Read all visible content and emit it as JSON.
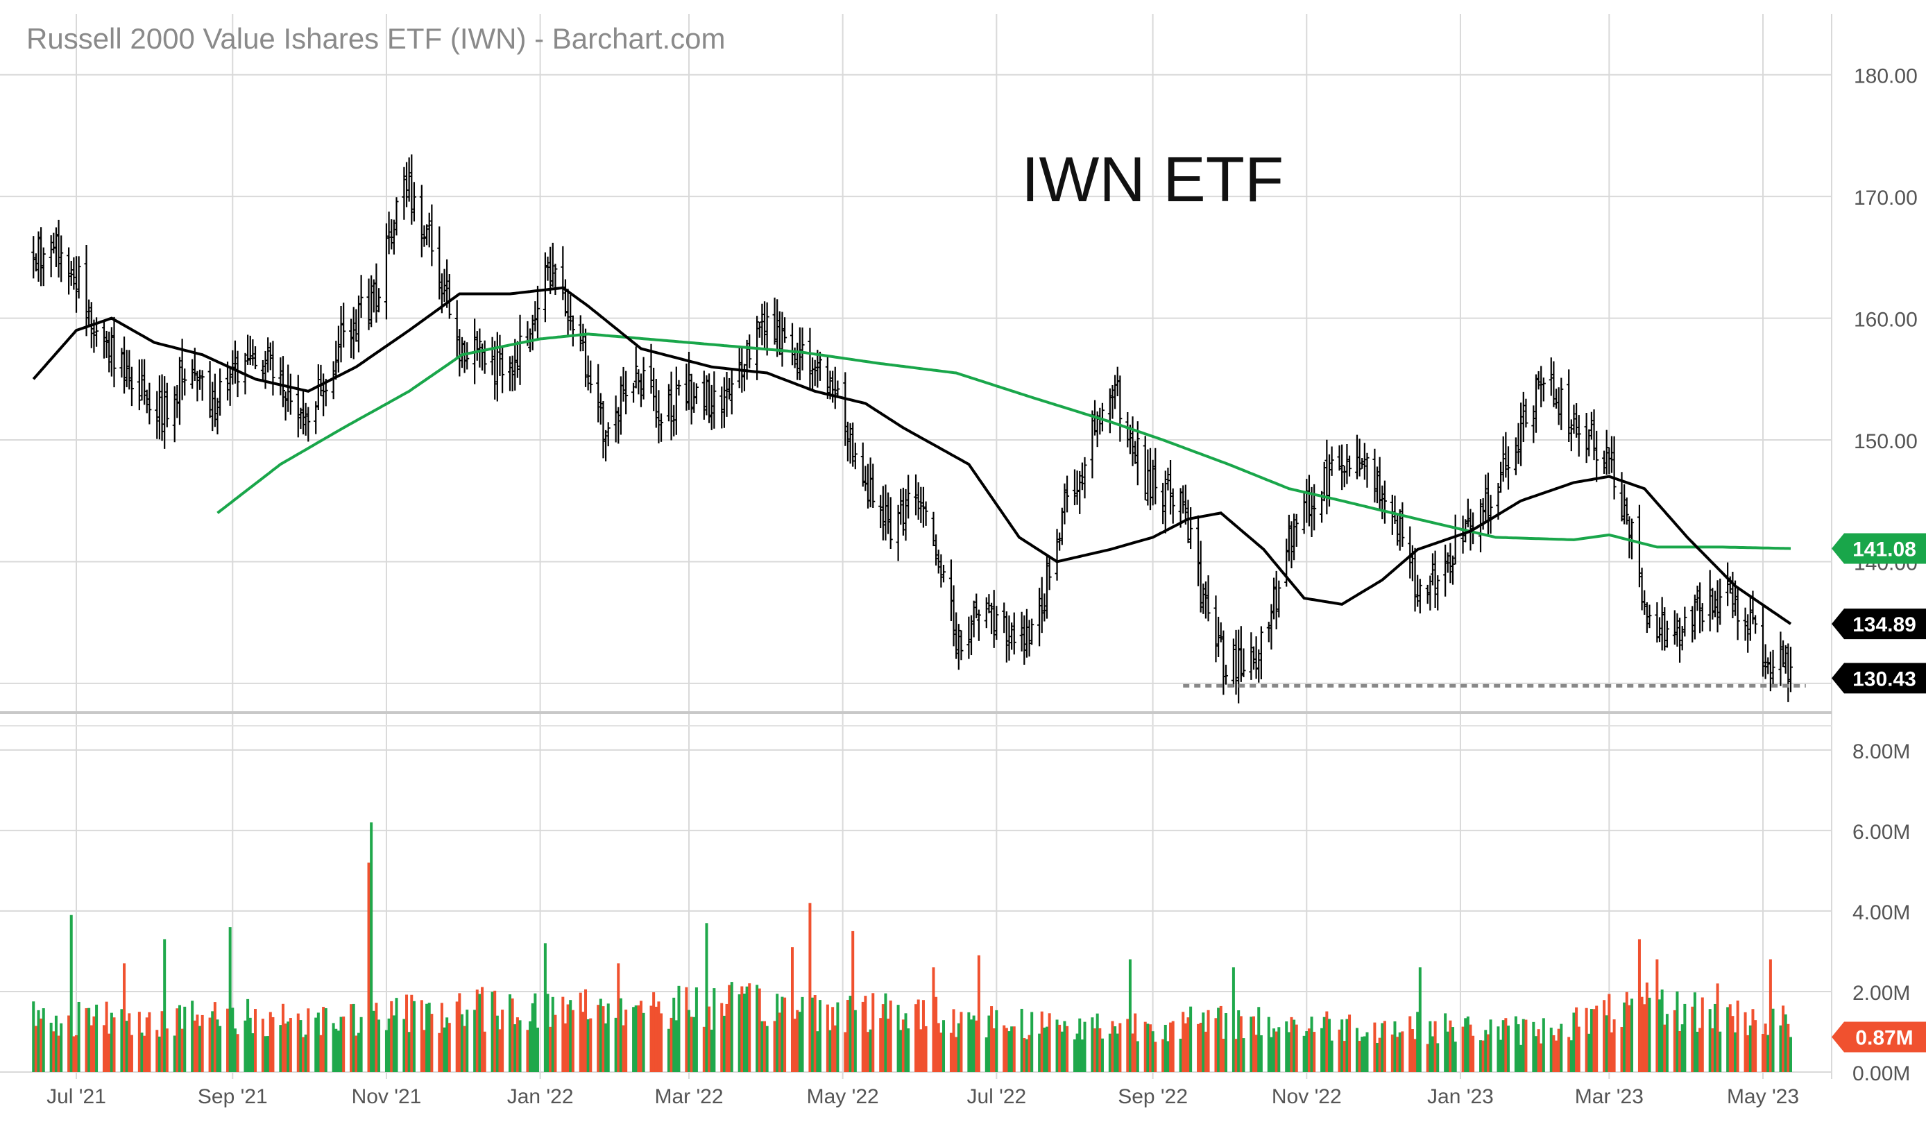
{
  "chart_data": {
    "type": "ohlc",
    "title": "Russell 2000 Value Ishares ETF (IWN) - Barchart.com",
    "annotation": "IWN ETF",
    "colors": {
      "price_bar": "#000000",
      "ma_short": "#000000",
      "ma_long": "#19a64a",
      "volume_up": "#1fa84b",
      "volume_down": "#f0512f",
      "support_line": "#888888",
      "grid": "#d9d9d9"
    },
    "price_axis": {
      "ylim": [
        128,
        185
      ],
      "ticks": [
        "130.00",
        "140.00",
        "150.00",
        "160.00",
        "170.00",
        "180.00"
      ],
      "tick_values": [
        130,
        140,
        150,
        160,
        170,
        180
      ]
    },
    "volume_axis": {
      "ylim": [
        0,
        8.6
      ],
      "ticks": [
        "0.00M",
        "2.00M",
        "4.00M",
        "6.00M",
        "8.00M"
      ],
      "tick_values": [
        0,
        2,
        4,
        6,
        8
      ]
    },
    "x_axis": {
      "ticks": [
        "Jul '21",
        "Sep '21",
        "Nov '21",
        "Jan '22",
        "Mar '22",
        "May '22",
        "Jul '22",
        "Sep '22",
        "Nov '22",
        "Jan '23",
        "Mar '23",
        "May '23"
      ],
      "tick_dates": [
        "2021-07-01",
        "2021-09-01",
        "2021-11-01",
        "2022-01-01",
        "2022-03-01",
        "2022-05-01",
        "2022-07-01",
        "2022-09-01",
        "2022-11-01",
        "2023-01-01",
        "2023-03-01",
        "2023-05-01"
      ]
    },
    "date_range": [
      "2021-06-14",
      "2023-05-12"
    ],
    "close_anchors": [
      [
        "2021-06-14",
        165.0
      ],
      [
        "2021-06-25",
        166.0
      ],
      [
        "2021-07-08",
        160.0
      ],
      [
        "2021-07-20",
        156.0
      ],
      [
        "2021-08-02",
        152.0
      ],
      [
        "2021-08-12",
        155.0
      ],
      [
        "2021-08-26",
        153.0
      ],
      [
        "2021-09-08",
        158.0
      ],
      [
        "2021-09-20",
        155.0
      ],
      [
        "2021-10-01",
        152.0
      ],
      [
        "2021-10-14",
        158.0
      ],
      [
        "2021-10-28",
        162.0
      ],
      [
        "2021-11-08",
        172.0
      ],
      [
        "2021-11-19",
        166.0
      ],
      [
        "2021-11-30",
        158.0
      ],
      [
        "2021-12-10",
        157.0
      ],
      [
        "2021-12-20",
        155.0
      ],
      [
        "2022-01-03",
        164.0
      ],
      [
        "2022-01-14",
        160.0
      ],
      [
        "2022-01-27",
        150.0
      ],
      [
        "2022-02-08",
        156.0
      ],
      [
        "2022-02-18",
        152.0
      ],
      [
        "2022-02-28",
        154.0
      ],
      [
        "2022-03-14",
        153.0
      ],
      [
        "2022-03-29",
        160.0
      ],
      [
        "2022-04-08",
        158.0
      ],
      [
        "2022-04-21",
        156.0
      ],
      [
        "2022-04-29",
        153.0
      ],
      [
        "2022-05-11",
        146.0
      ],
      [
        "2022-05-20",
        143.0
      ],
      [
        "2022-06-01",
        145.0
      ],
      [
        "2022-06-16",
        133.0
      ],
      [
        "2022-06-24",
        136.0
      ],
      [
        "2022-07-14",
        133.0
      ],
      [
        "2022-07-29",
        145.0
      ],
      [
        "2022-08-16",
        155.0
      ],
      [
        "2022-08-29",
        147.0
      ],
      [
        "2022-09-12",
        145.0
      ],
      [
        "2022-09-23",
        135.0
      ],
      [
        "2022-09-30",
        131.5
      ],
      [
        "2022-10-13",
        132.0
      ],
      [
        "2022-10-27",
        143.0
      ],
      [
        "2022-11-10",
        147.0
      ],
      [
        "2022-11-25",
        148.0
      ],
      [
        "2022-12-05",
        144.0
      ],
      [
        "2022-12-15",
        138.0
      ],
      [
        "2022-12-28",
        140.0
      ],
      [
        "2023-01-12",
        145.0
      ],
      [
        "2023-02-02",
        155.0
      ],
      [
        "2023-02-15",
        152.0
      ],
      [
        "2023-02-28",
        148.0
      ],
      [
        "2023-03-09",
        143.0
      ],
      [
        "2023-03-17",
        135.0
      ],
      [
        "2023-03-28",
        134.0
      ],
      [
        "2023-04-06",
        136.0
      ],
      [
        "2023-04-18",
        137.0
      ],
      [
        "2023-04-28",
        134.0
      ],
      [
        "2023-05-04",
        131.0
      ],
      [
        "2023-05-09",
        132.5
      ],
      [
        "2023-05-12",
        130.43
      ]
    ],
    "ma_short_anchors": [
      [
        "2021-06-14",
        155.0
      ],
      [
        "2021-07-01",
        159.0
      ],
      [
        "2021-07-15",
        160.0
      ],
      [
        "2021-08-01",
        158.0
      ],
      [
        "2021-08-20",
        157.0
      ],
      [
        "2021-09-10",
        155.0
      ],
      [
        "2021-10-01",
        154.0
      ],
      [
        "2021-10-20",
        156.0
      ],
      [
        "2021-11-10",
        159.0
      ],
      [
        "2021-11-30",
        162.0
      ],
      [
        "2021-12-20",
        162.0
      ],
      [
        "2022-01-10",
        162.5
      ],
      [
        "2022-01-20",
        161.0
      ],
      [
        "2022-02-10",
        157.5
      ],
      [
        "2022-03-10",
        156.0
      ],
      [
        "2022-04-01",
        155.5
      ],
      [
        "2022-04-20",
        154.0
      ],
      [
        "2022-05-10",
        153.0
      ],
      [
        "2022-05-25",
        151.0
      ],
      [
        "2022-06-20",
        148.0
      ],
      [
        "2022-07-10",
        142.0
      ],
      [
        "2022-07-25",
        140.0
      ],
      [
        "2022-08-15",
        141.0
      ],
      [
        "2022-09-01",
        142.0
      ],
      [
        "2022-09-15",
        143.5
      ],
      [
        "2022-09-28",
        144.0
      ],
      [
        "2022-10-15",
        141.0
      ],
      [
        "2022-10-31",
        137.0
      ],
      [
        "2022-11-15",
        136.5
      ],
      [
        "2022-12-01",
        138.5
      ],
      [
        "2022-12-15",
        141.0
      ],
      [
        "2023-01-05",
        142.5
      ],
      [
        "2023-01-25",
        145.0
      ],
      [
        "2023-02-15",
        146.5
      ],
      [
        "2023-03-01",
        147.0
      ],
      [
        "2023-03-15",
        146.0
      ],
      [
        "2023-04-01",
        142.0
      ],
      [
        "2023-04-20",
        138.0
      ],
      [
        "2023-05-12",
        134.89
      ]
    ],
    "ma_long_anchors": [
      [
        "2021-08-26",
        144.0
      ],
      [
        "2021-09-20",
        148.0
      ],
      [
        "2021-10-15",
        151.0
      ],
      [
        "2021-11-10",
        154.0
      ],
      [
        "2021-12-01",
        157.0
      ],
      [
        "2022-01-01",
        158.3
      ],
      [
        "2022-01-20",
        158.7
      ],
      [
        "2022-03-01",
        158.0
      ],
      [
        "2022-04-15",
        157.2
      ],
      [
        "2022-05-15",
        156.3
      ],
      [
        "2022-06-15",
        155.5
      ],
      [
        "2022-07-15",
        153.5
      ],
      [
        "2022-08-15",
        151.5
      ],
      [
        "2022-09-05",
        150.0
      ],
      [
        "2022-10-01",
        148.0
      ],
      [
        "2022-10-25",
        146.0
      ],
      [
        "2022-11-15",
        145.0
      ],
      [
        "2022-12-15",
        143.5
      ],
      [
        "2023-01-15",
        142.0
      ],
      [
        "2023-02-15",
        141.8
      ],
      [
        "2023-03-01",
        142.2
      ],
      [
        "2023-03-20",
        141.2
      ],
      [
        "2023-04-15",
        141.2
      ],
      [
        "2023-05-12",
        141.08
      ]
    ],
    "support_level": 129.8,
    "support_start": "2022-09-13",
    "support_end": "2023-05-18",
    "volume_base": [
      [
        "2021-06-14",
        1.3
      ],
      [
        "2021-10-15",
        1.3
      ],
      [
        "2021-12-01",
        1.5
      ],
      [
        "2022-02-01",
        1.6
      ],
      [
        "2022-04-01",
        1.6
      ],
      [
        "2022-06-01",
        1.4
      ],
      [
        "2022-08-01",
        1.1
      ],
      [
        "2022-10-01",
        1.2
      ],
      [
        "2022-12-01",
        1.1
      ],
      [
        "2023-02-01",
        1.0
      ],
      [
        "2023-03-15",
        1.6
      ],
      [
        "2023-05-12",
        1.2
      ]
    ],
    "volume_spikes": [
      [
        "2021-06-29",
        3.9
      ],
      [
        "2021-07-20",
        2.7
      ],
      [
        "2021-08-05",
        3.3
      ],
      [
        "2021-08-31",
        3.6
      ],
      [
        "2021-10-25",
        5.2
      ],
      [
        "2021-10-26",
        6.2
      ],
      [
        "2022-01-03",
        3.2
      ],
      [
        "2022-02-01",
        2.7
      ],
      [
        "2022-03-08",
        3.7
      ],
      [
        "2022-04-11",
        3.1
      ],
      [
        "2022-04-18",
        4.2
      ],
      [
        "2022-05-05",
        3.5
      ],
      [
        "2022-06-06",
        2.6
      ],
      [
        "2022-06-24",
        2.9
      ],
      [
        "2022-08-23",
        2.8
      ],
      [
        "2022-10-03",
        2.6
      ],
      [
        "2022-12-16",
        2.6
      ],
      [
        "2023-03-13",
        3.3
      ],
      [
        "2023-03-20",
        2.8
      ],
      [
        "2023-04-13",
        2.2
      ],
      [
        "2023-05-04",
        2.8
      ]
    ],
    "last_volume": 0.87,
    "labels": {
      "ma_long": "141.08",
      "ma_short": "134.89",
      "close": "130.43",
      "volume": "0.87M"
    }
  }
}
